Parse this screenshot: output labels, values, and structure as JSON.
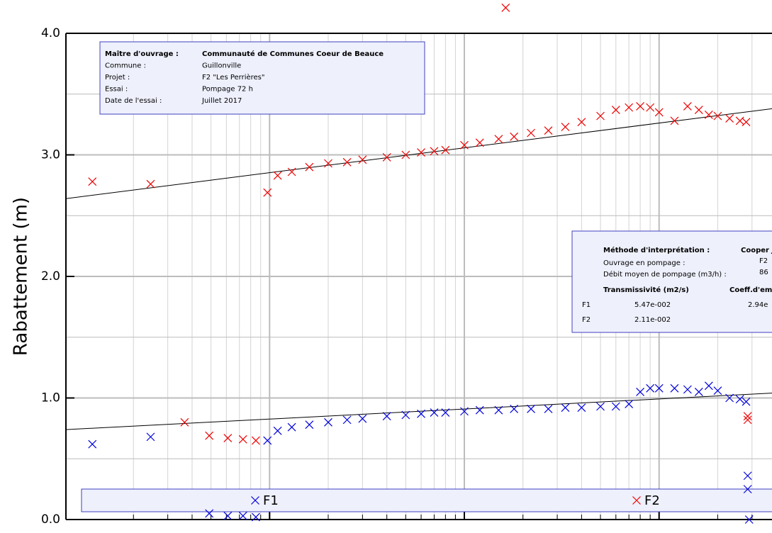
{
  "chart_data": {
    "type": "scatter",
    "y_label": "Rabattement (m)",
    "x_scale": "log",
    "xlim": [
      0.09,
      380
    ],
    "xticks": [
      1,
      10,
      100
    ],
    "xminorticks": [
      0.2,
      0.3,
      0.4,
      0.5,
      0.6,
      0.7,
      0.8,
      0.9,
      2,
      3,
      4,
      5,
      6,
      7,
      8,
      9,
      20,
      30,
      40,
      50,
      60,
      70,
      80,
      90,
      200,
      300
    ],
    "ylim": [
      0,
      4
    ],
    "yticks": [
      {
        "value": 0,
        "label": "0.0"
      },
      {
        "value": 1,
        "label": "1.0"
      },
      {
        "value": 2,
        "label": "2.0"
      },
      {
        "value": 3,
        "label": "3.0"
      },
      {
        "value": 4,
        "label": "4.0"
      }
    ],
    "yminorticks": [
      0.5,
      1.5,
      2.5,
      3.5
    ],
    "grid": true,
    "series": [
      {
        "name": "F1",
        "color": "#0000dd",
        "x": [
          0.123,
          0.245,
          0.975,
          1.1,
          1.3,
          1.6,
          2,
          2.5,
          3,
          4,
          5,
          6,
          7,
          8,
          10,
          12,
          15,
          18,
          22,
          27,
          33,
          40,
          50,
          60,
          70,
          80,
          90,
          100,
          120,
          140,
          160,
          180,
          200,
          230,
          260,
          280,
          0.49,
          0.61,
          0.73,
          0.85,
          285,
          285,
          290
        ],
        "y": [
          0.62,
          0.68,
          0.65,
          0.73,
          0.76,
          0.78,
          0.8,
          0.82,
          0.83,
          0.85,
          0.86,
          0.87,
          0.88,
          0.88,
          0.89,
          0.9,
          0.9,
          0.91,
          0.91,
          0.91,
          0.92,
          0.92,
          0.93,
          0.93,
          0.95,
          1.05,
          1.08,
          1.08,
          1.08,
          1.07,
          1.05,
          1.1,
          1.06,
          1.0,
          0.99,
          0.97,
          0.05,
          0.03,
          0.03,
          0.02,
          0.36,
          0.25,
          0.0
        ]
      },
      {
        "name": "F2",
        "color": "#ee0000",
        "x": [
          0.123,
          0.245,
          0.975,
          1.1,
          1.3,
          1.6,
          2,
          2.5,
          3,
          4,
          5,
          6,
          7,
          8,
          10,
          12,
          15,
          18,
          22,
          27,
          33,
          40,
          50,
          60,
          70,
          80,
          90,
          100,
          120,
          140,
          160,
          180,
          200,
          230,
          260,
          280,
          16.3,
          0.366,
          0.49,
          0.61,
          0.73,
          0.85,
          285,
          285
        ],
        "y": [
          2.78,
          2.76,
          2.69,
          2.83,
          2.86,
          2.9,
          2.93,
          2.94,
          2.96,
          2.98,
          3.0,
          3.02,
          3.03,
          3.04,
          3.08,
          3.1,
          3.13,
          3.15,
          3.18,
          3.2,
          3.23,
          3.27,
          3.32,
          3.37,
          3.39,
          3.4,
          3.39,
          3.35,
          3.28,
          3.4,
          3.37,
          3.33,
          3.32,
          3.3,
          3.28,
          3.27,
          4.21,
          0.8,
          0.69,
          0.67,
          0.66,
          0.65,
          0.85,
          0.82
        ]
      }
    ],
    "fit_lines": [
      {
        "x": [
          0.09,
          380
        ],
        "y": [
          2.64,
          3.38
        ]
      },
      {
        "x": [
          0.09,
          380
        ],
        "y": [
          0.74,
          1.04
        ]
      }
    ],
    "info_box": {
      "rows": [
        [
          "Maître d'ouvrage :",
          "Communauté de Communes Coeur de Beauce"
        ],
        [
          "Commune :",
          "Guillonville"
        ],
        [
          "Projet :",
          "F2 \"Les Perrières\""
        ],
        [
          "Essai :",
          "Pompage 72 h"
        ],
        [
          "Date de l'essai :",
          "Juillet 2017"
        ]
      ]
    },
    "results_box": {
      "title": [
        "Méthode d'interprétation :",
        "Cooper J"
      ],
      "rows": [
        [
          "Ouvrage en pompage :",
          "F2"
        ],
        [
          "Débit moyen de pompage (m3/h) :",
          "86"
        ]
      ],
      "headers": [
        "Transmissivité (m2/s)",
        "Coeff.d'em"
      ],
      "table": [
        [
          "F1",
          "5.47e-002",
          "2.94e"
        ],
        [
          "F2",
          "2.11e-002"
        ]
      ]
    }
  }
}
